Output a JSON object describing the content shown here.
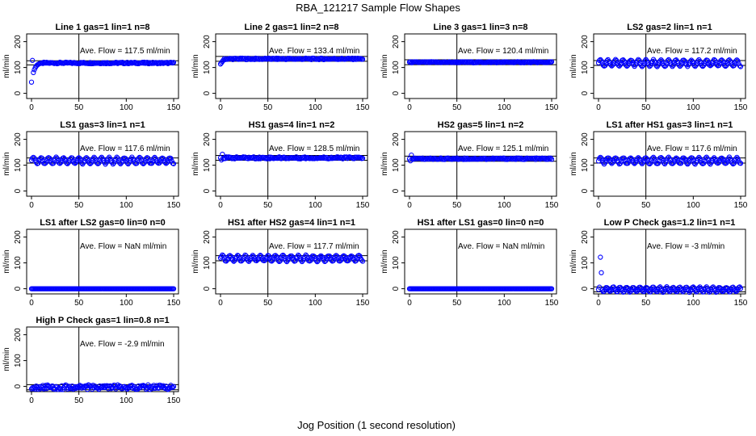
{
  "title": "RBA_121217  Sample Flow Shapes",
  "xlabel": "Jog Position (1 second resolution)",
  "colors": {
    "points": "#0000ff",
    "axes": "#000000",
    "background": "#ffffff"
  },
  "chart_data": [
    {
      "type": "scatter",
      "title": "Line 1 gas=1 lin=1 n=8",
      "ylabel": "ml/min",
      "xlim": [
        0,
        150
      ],
      "ylim": [
        -20,
        230
      ],
      "xticks": [
        "0",
        "50",
        "100",
        "150"
      ],
      "yticks": [
        "0",
        "100",
        "200"
      ],
      "vline": 50,
      "hlines": [
        126,
        110
      ],
      "annotation": "Ave. Flow =  117.5  ml/min",
      "pattern": "dip",
      "base": 117.5,
      "amp": 3
    },
    {
      "type": "scatter",
      "title": "Line 2 gas=1 lin=2 n=8",
      "ylabel": "ml/min",
      "xlim": [
        0,
        150
      ],
      "ylim": [
        -20,
        230
      ],
      "xticks": [
        "0",
        "50",
        "100",
        "150"
      ],
      "yticks": [
        "0",
        "100",
        "200"
      ],
      "vline": 50,
      "hlines": [
        143,
        124
      ],
      "annotation": "Ave. Flow =  133.4  ml/min",
      "pattern": "rise",
      "base": 133.4,
      "amp": 3
    },
    {
      "type": "scatter",
      "title": "Line 3 gas=1 lin=3 n=8",
      "ylabel": "ml/min",
      "xlim": [
        0,
        150
      ],
      "ylim": [
        -20,
        230
      ],
      "xticks": [
        "0",
        "50",
        "100",
        "150"
      ],
      "yticks": [
        "0",
        "100",
        "200"
      ],
      "vline": 50,
      "hlines": [
        130,
        111
      ],
      "annotation": "Ave. Flow =  120.4  ml/min",
      "pattern": "flat",
      "base": 120.4,
      "amp": 2
    },
    {
      "type": "scatter",
      "title": "LS2 gas=2 lin=1 n=1",
      "ylabel": "ml/min",
      "xlim": [
        0,
        150
      ],
      "ylim": [
        -20,
        230
      ],
      "xticks": [
        "0",
        "50",
        "100",
        "150"
      ],
      "yticks": [
        "0",
        "100",
        "200"
      ],
      "vline": 50,
      "hlines": [
        127,
        108
      ],
      "annotation": "Ave. Flow =  117.2  ml/min",
      "pattern": "wave",
      "base": 117.2,
      "amp": 12
    },
    {
      "type": "scatter",
      "title": "LS1 gas=3 lin=1 n=1",
      "ylabel": "ml/min",
      "xlim": [
        0,
        150
      ],
      "ylim": [
        -20,
        230
      ],
      "xticks": [
        "0",
        "50",
        "100",
        "150"
      ],
      "yticks": [
        "0",
        "100",
        "200"
      ],
      "vline": 50,
      "hlines": [
        128,
        108
      ],
      "annotation": "Ave. Flow =  117.6  ml/min",
      "pattern": "wave",
      "base": 117.6,
      "amp": 12
    },
    {
      "type": "scatter",
      "title": "HS1 gas=4 lin=1 n=2",
      "ylabel": "ml/min",
      "xlim": [
        0,
        150
      ],
      "ylim": [
        -20,
        230
      ],
      "xticks": [
        "0",
        "50",
        "100",
        "150"
      ],
      "yticks": [
        "0",
        "100",
        "200"
      ],
      "vline": 50,
      "hlines": [
        138,
        119
      ],
      "annotation": "Ave. Flow =  128.5  ml/min",
      "pattern": "spike",
      "base": 128.5,
      "amp": 4
    },
    {
      "type": "scatter",
      "title": "HS2 gas=5 lin=1 n=2",
      "ylabel": "ml/min",
      "xlim": [
        0,
        150
      ],
      "ylim": [
        -20,
        230
      ],
      "xticks": [
        "0",
        "50",
        "100",
        "150"
      ],
      "yticks": [
        "0",
        "100",
        "200"
      ],
      "vline": 50,
      "hlines": [
        135,
        115
      ],
      "annotation": "Ave. Flow =  125.1  ml/min",
      "pattern": "spike",
      "base": 125.1,
      "amp": 3
    },
    {
      "type": "scatter",
      "title": "LS1 after HS1 gas=3 lin=1 n=1",
      "ylabel": "ml/min",
      "xlim": [
        0,
        150
      ],
      "ylim": [
        -20,
        230
      ],
      "xticks": [
        "0",
        "50",
        "100",
        "150"
      ],
      "yticks": [
        "0",
        "100",
        "200"
      ],
      "vline": 50,
      "hlines": [
        128,
        108
      ],
      "annotation": "Ave. Flow =  117.6  ml/min",
      "pattern": "wave",
      "base": 117.6,
      "amp": 12
    },
    {
      "type": "scatter",
      "title": "LS1 after LS2 gas=0 lin=0 n=0",
      "ylabel": "ml/min",
      "xlim": [
        0,
        150
      ],
      "ylim": [
        -20,
        230
      ],
      "xticks": [
        "0",
        "50",
        "100",
        "150"
      ],
      "yticks": [
        "0",
        "100",
        "200"
      ],
      "vline": 50,
      "hlines": [],
      "annotation": "Ave. Flow =  NaN  ml/min",
      "pattern": "flat",
      "base": 0,
      "amp": 0
    },
    {
      "type": "scatter",
      "title": "HS1 after HS2 gas=4 lin=1 n=1",
      "ylabel": "ml/min",
      "xlim": [
        0,
        150
      ],
      "ylim": [
        -20,
        230
      ],
      "xticks": [
        "0",
        "50",
        "100",
        "150"
      ],
      "yticks": [
        "0",
        "100",
        "200"
      ],
      "vline": 50,
      "hlines": [
        128,
        108
      ],
      "annotation": "Ave. Flow =  117.7  ml/min",
      "pattern": "wave",
      "base": 117.7,
      "amp": 11
    },
    {
      "type": "scatter",
      "title": "HS1 after LS1 gas=0 lin=0 n=0",
      "ylabel": "ml/min",
      "xlim": [
        0,
        150
      ],
      "ylim": [
        -20,
        230
      ],
      "xticks": [
        "0",
        "50",
        "100",
        "150"
      ],
      "yticks": [
        "0",
        "100",
        "200"
      ],
      "vline": 50,
      "hlines": [],
      "annotation": "Ave. Flow =  NaN  ml/min",
      "pattern": "flat",
      "base": 0,
      "amp": 0
    },
    {
      "type": "scatter",
      "title": "Low P Check gas=1.2 lin=1 n=1",
      "ylabel": "ml/min",
      "xlim": [
        0,
        150
      ],
      "ylim": [
        -20,
        230
      ],
      "xticks": [
        "0",
        "50",
        "100",
        "150"
      ],
      "yticks": [
        "0",
        "100",
        "200"
      ],
      "vline": 50,
      "hlines": [
        7,
        -12
      ],
      "annotation": "Ave. Flow =  -3  ml/min",
      "pattern": "lowp",
      "base": -3,
      "amp": 9
    },
    {
      "type": "scatter",
      "title": "High P Check gas=1 lin=0.8 n=1",
      "ylabel": "ml/min",
      "xlim": [
        0,
        150
      ],
      "ylim": [
        -20,
        230
      ],
      "xticks": [
        "0",
        "50",
        "100",
        "150"
      ],
      "yticks": [
        "0",
        "100",
        "200"
      ],
      "vline": 50,
      "hlines": [
        7,
        -13
      ],
      "annotation": "Ave. Flow =  -2.9  ml/min",
      "pattern": "noise",
      "base": -2.9,
      "amp": 9
    }
  ]
}
